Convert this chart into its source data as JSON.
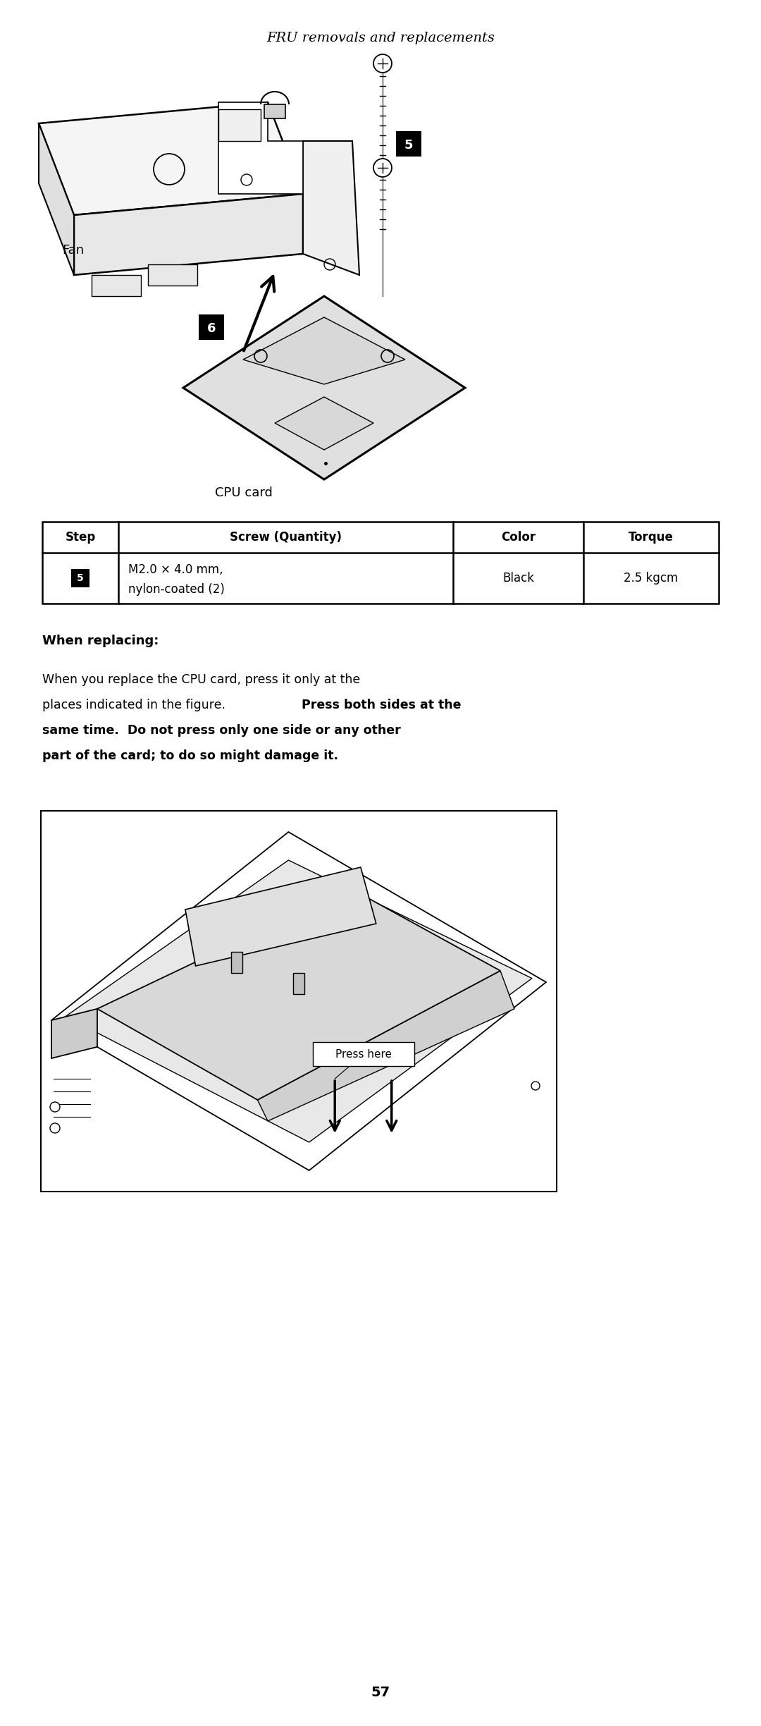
{
  "title": "FRU removals and replacements",
  "fan_label": "Fan",
  "cpu_label": "CPU card",
  "table_headers": [
    "Step",
    "Screw (Quantity)",
    "Color",
    "Torque"
  ],
  "table_step": "5",
  "table_screw1": "M2.0 × 4.0 mm,",
  "table_screw2": "nylon-coated (2)",
  "table_color": "Black",
  "table_torque": "2.5 kgcm",
  "when_replacing_title": "When replacing:",
  "body_normal1": "When you replace the CPU card, press it only at the",
  "body_normal2": "places indicated in the figure.  ",
  "body_bold2": "Press both sides at the",
  "body_bold3": "same time.  Do not press only one side or any other",
  "body_bold4": "part of the card; to do so might damage it.",
  "press_here_label": "Press here",
  "page_number": "57",
  "bg_color": "#ffffff",
  "text_color": "#000000",
  "cpu_fill": "#e0e0e0",
  "cpu_edge": "#000000",
  "fan_fill": "#f2f2f2",
  "fan_edge": "#000000"
}
